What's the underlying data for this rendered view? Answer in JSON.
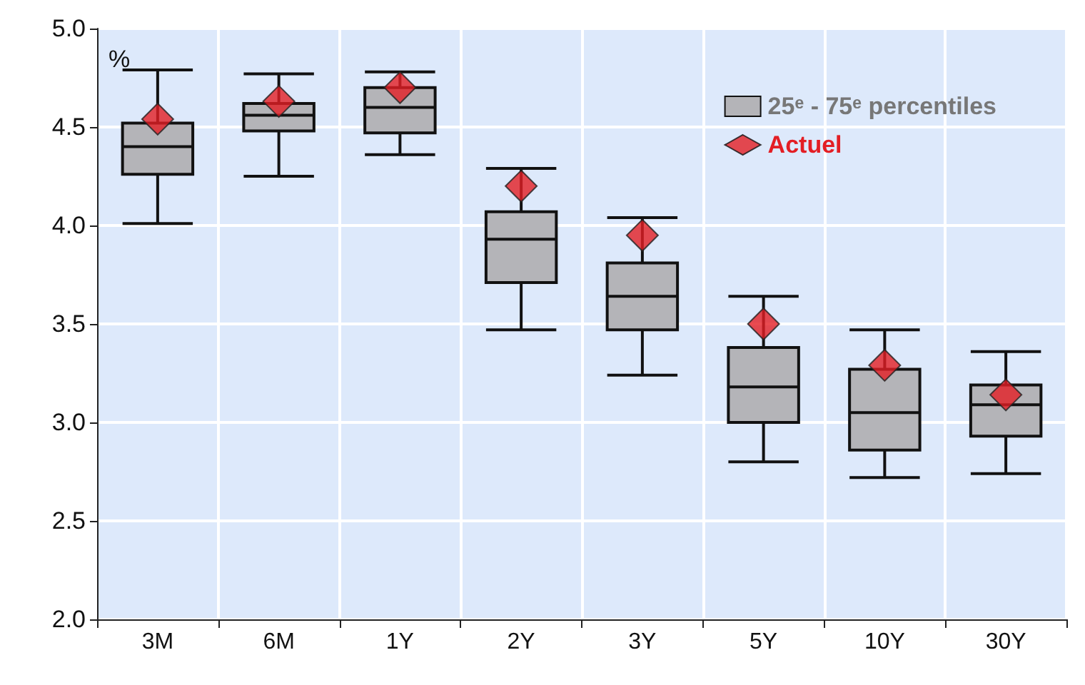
{
  "chart_data": {
    "type": "box",
    "ylabel": "%",
    "categories": [
      "3M",
      "6M",
      "1Y",
      "2Y",
      "3Y",
      "5Y",
      "10Y",
      "30Y"
    ],
    "ylim": [
      2,
      5
    ],
    "yticks": [
      {
        "value": 2,
        "label": "2.0"
      },
      {
        "value": 2.5,
        "label": "2.5"
      },
      {
        "value": 3,
        "label": "3.0"
      },
      {
        "value": 3.5,
        "label": "3.5"
      },
      {
        "value": 4,
        "label": "4.0"
      },
      {
        "value": 4.5,
        "label": "4.5"
      },
      {
        "value": 5,
        "label": "5.0"
      }
    ],
    "grid": true,
    "legend": "top right",
    "series": [
      {
        "name": "25ᵉ - 75ᵉ percentiles",
        "color": "#b4b4b8",
        "boxes": [
          {
            "low": 4.01,
            "q1": 4.26,
            "median": 4.4,
            "q3": 4.52,
            "high": 4.79
          },
          {
            "low": 4.25,
            "q1": 4.48,
            "median": 4.56,
            "q3": 4.62,
            "high": 4.77
          },
          {
            "low": 4.36,
            "q1": 4.47,
            "median": 4.6,
            "q3": 4.7,
            "high": 4.78
          },
          {
            "low": 3.47,
            "q1": 3.71,
            "median": 3.93,
            "q3": 4.07,
            "high": 4.29
          },
          {
            "low": 3.24,
            "q1": 3.47,
            "median": 3.64,
            "q3": 3.81,
            "high": 4.04
          },
          {
            "low": 2.8,
            "q1": 3.0,
            "median": 3.18,
            "q3": 3.38,
            "high": 3.64
          },
          {
            "low": 2.72,
            "q1": 2.86,
            "median": 3.05,
            "q3": 3.27,
            "high": 3.47
          },
          {
            "low": 2.74,
            "q1": 2.93,
            "median": 3.09,
            "q3": 3.19,
            "high": 3.36
          }
        ]
      },
      {
        "type": "scatter",
        "name": "Actuel",
        "color": "#e31e24",
        "marker": "diamond",
        "x": [
          "3M",
          "6M",
          "1Y",
          "2Y",
          "3Y",
          "5Y",
          "10Y",
          "30Y"
        ],
        "values": [
          4.54,
          4.63,
          4.7,
          4.2,
          3.95,
          3.5,
          3.29,
          3.14
        ]
      }
    ]
  }
}
